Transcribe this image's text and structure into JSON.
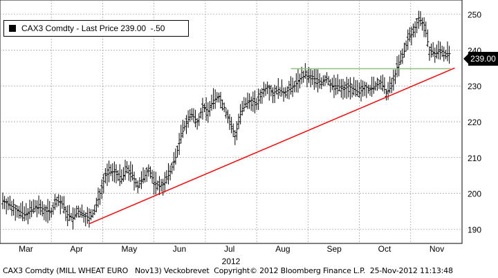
{
  "legend": {
    "text": "CAX3 Comdty - Last Price 239.00  -.50"
  },
  "last_price_tag": "239.00",
  "footer": "CAX3 Comdty (MILL WHEAT EURO   Nov13) Veckobrevet  Copyright© 2012 Bloomberg Finance L.P.  25-Nov-2012 11:13:48",
  "chart_data": {
    "type": "ohlc",
    "x_year_label": "2012",
    "x_months": [
      "Mar",
      "Apr",
      "May",
      "Jun",
      "Jul",
      "Aug",
      "Sep",
      "Oct",
      "Nov"
    ],
    "y_ticks": [
      190,
      200,
      210,
      220,
      230,
      240,
      250
    ],
    "ylim": [
      186,
      254
    ],
    "grid": true,
    "close_series": [
      [
        0,
        198
      ],
      [
        3,
        197
      ],
      [
        6,
        196
      ],
      [
        9,
        195
      ],
      [
        12,
        194
      ],
      [
        15,
        195
      ],
      [
        18,
        196
      ],
      [
        21,
        196
      ],
      [
        24,
        195
      ],
      [
        27,
        195
      ],
      [
        30,
        198
      ],
      [
        33,
        197
      ],
      [
        36,
        194
      ],
      [
        39,
        193
      ],
      [
        42,
        195
      ],
      [
        45,
        194
      ],
      [
        48,
        193
      ],
      [
        51,
        195
      ],
      [
        54,
        200
      ],
      [
        57,
        205
      ],
      [
        60,
        206
      ],
      [
        63,
        206
      ],
      [
        66,
        204
      ],
      [
        69,
        207
      ],
      [
        72,
        205
      ],
      [
        75,
        202
      ],
      [
        78,
        204
      ],
      [
        81,
        207
      ],
      [
        84,
        203
      ],
      [
        87,
        202
      ],
      [
        90,
        203
      ],
      [
        93,
        206
      ],
      [
        96,
        210
      ],
      [
        99,
        216
      ],
      [
        102,
        220
      ],
      [
        105,
        222
      ],
      [
        108,
        220
      ],
      [
        111,
        224
      ],
      [
        114,
        223
      ],
      [
        117,
        226
      ],
      [
        120,
        227
      ],
      [
        123,
        224
      ],
      [
        126,
        220
      ],
      [
        129,
        216
      ],
      [
        132,
        222
      ],
      [
        135,
        225
      ],
      [
        138,
        226
      ],
      [
        141,
        225
      ],
      [
        144,
        228
      ],
      [
        147,
        230
      ],
      [
        150,
        228
      ],
      [
        153,
        229
      ],
      [
        156,
        228
      ],
      [
        159,
        229
      ],
      [
        162,
        230
      ],
      [
        165,
        232
      ],
      [
        168,
        233
      ],
      [
        171,
        232
      ],
      [
        174,
        232
      ],
      [
        177,
        231
      ],
      [
        180,
        232
      ],
      [
        183,
        230
      ],
      [
        186,
        230
      ],
      [
        189,
        229
      ],
      [
        192,
        230
      ],
      [
        195,
        229
      ],
      [
        198,
        228
      ],
      [
        201,
        230
      ],
      [
        204,
        229
      ],
      [
        207,
        230
      ],
      [
        210,
        231
      ],
      [
        213,
        228
      ],
      [
        216,
        230
      ],
      [
        219,
        235
      ],
      [
        222,
        238
      ],
      [
        225,
        243
      ],
      [
        228,
        245
      ],
      [
        231,
        249
      ],
      [
        234,
        247
      ],
      [
        237,
        240
      ],
      [
        240,
        239
      ],
      [
        243,
        240
      ],
      [
        246,
        239
      ],
      [
        249,
        239
      ]
    ],
    "x_domain": [
      0,
      252
    ],
    "annotations": [
      {
        "type": "trendline",
        "color": "#ff0000",
        "from": [
          48,
          191.5
        ],
        "to": [
          251,
          235
        ]
      },
      {
        "type": "resistance",
        "color": "#8fbf7f",
        "from": [
          160,
          234.8
        ],
        "to": [
          249,
          234.8
        ]
      }
    ]
  }
}
